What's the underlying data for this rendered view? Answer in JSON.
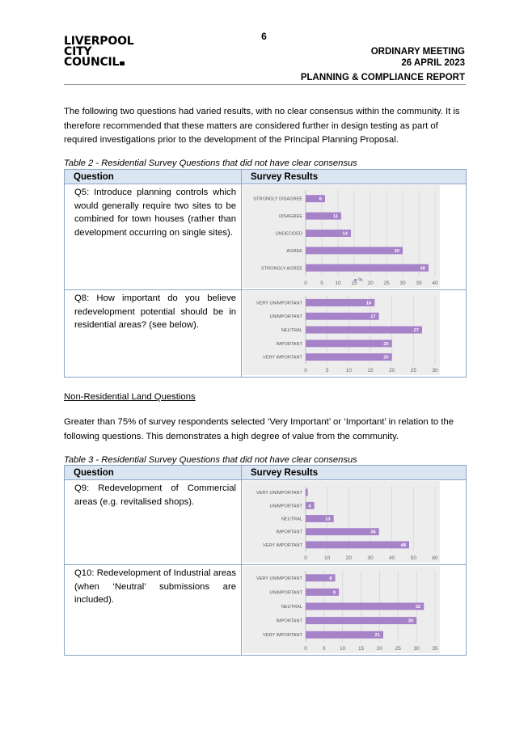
{
  "page": {
    "number": "6",
    "logo_lines": [
      "LIVERPOOL",
      "CITY",
      "COUNCIL"
    ],
    "header": {
      "meeting": "ORDINARY MEETING",
      "date": "26 APRIL 2023",
      "report": "PLANNING & COMPLIANCE REPORT"
    }
  },
  "body": {
    "intro": "The following two questions had varied results, with no clear consensus within the community. It is therefore recommended that these matters are considered further in design testing as part of required investigations prior to the development of the Principal Planning Proposal.",
    "table2_caption": "Table 2 - Residential Survey Questions that did not have clear consensus",
    "section_heading": "Non-Residential Land Questions",
    "section_para": "Greater than 75% of survey respondents selected ‘Very Important’ or ‘Important’ in relation to the following questions. This demonstrates a high degree of value from the community.",
    "table3_caption": "Table 3 - Residential Survey Questions that did not have clear consensus",
    "col_question": "Question",
    "col_results": "Survey Results"
  },
  "questions": {
    "q5": "Q5: Introduce planning controls which would generally require two sites to be combined for town houses (rather than development occurring on single sites).",
    "q8": "Q8: How important do you believe redevelopment potential should be in residential areas? (see below).",
    "q9": "Q9: Redevelopment of Commercial areas (e.g. revitalised shops).",
    "q10": "Q10: Redevelopment of Industrial areas (when ‘Neutral’ submissions are included)."
  },
  "chart_data": [
    {
      "id": "q5",
      "type": "bar",
      "orientation": "horizontal",
      "categories": [
        "STRONGLY DISAGREE",
        "DISAGREE",
        "UNDECIDED",
        "AGREE",
        "STRONGLY AGREE"
      ],
      "values": [
        6,
        11,
        14,
        30,
        38
      ],
      "xlim": [
        0,
        40
      ],
      "xticks": [
        0,
        5,
        10,
        15,
        20,
        25,
        30,
        35,
        40
      ],
      "legend": "%",
      "color": "#a682c8"
    },
    {
      "id": "q8",
      "type": "bar",
      "orientation": "horizontal",
      "categories": [
        "VERY UNIMPORTANT",
        "UNIMPORTANT",
        "NEUTRAL",
        "IMPORTANT",
        "VERY IMPORTANT"
      ],
      "values": [
        16,
        17,
        27,
        20,
        20
      ],
      "xlim": [
        0,
        30
      ],
      "xticks": [
        0,
        5,
        10,
        15,
        20,
        25,
        30
      ],
      "color": "#a682c8"
    },
    {
      "id": "q9",
      "type": "bar",
      "orientation": "horizontal",
      "categories": [
        "VERY UNIMPORTANT",
        "UNIMPORTANT",
        "NEUTRAL",
        "IMPORTANT",
        "VERY IMPORTANT"
      ],
      "values": [
        1,
        4,
        13,
        34,
        48
      ],
      "xlim": [
        0,
        60
      ],
      "xticks": [
        0,
        10,
        20,
        30,
        40,
        50,
        60
      ],
      "color": "#a682c8"
    },
    {
      "id": "q10",
      "type": "bar",
      "orientation": "horizontal",
      "categories": [
        "VERY UNIMPORTANT",
        "UNIMPORTANT",
        "NEUTRAL",
        "IMPORTANT",
        "VERY IMPORTANT"
      ],
      "values": [
        8,
        9,
        32,
        30,
        21
      ],
      "xlim": [
        0,
        35
      ],
      "xticks": [
        0,
        5,
        10,
        15,
        20,
        25,
        30,
        35
      ],
      "color": "#a682c8"
    }
  ]
}
